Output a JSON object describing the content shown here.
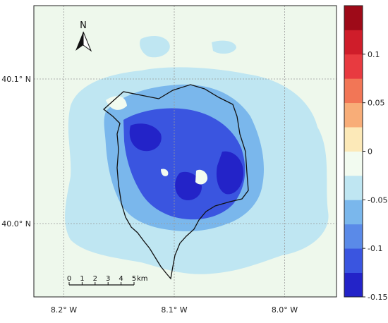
{
  "map": {
    "background_color": "#eef8ec",
    "lat_ticks": [
      {
        "value": 40.1,
        "label": "40.1° N"
      },
      {
        "value": 40.0,
        "label": "40.0° N"
      }
    ],
    "lon_ticks": [
      {
        "value": -8.2,
        "label": "8.2° W"
      },
      {
        "value": -8.1,
        "label": "8.1° W"
      },
      {
        "value": -8.0,
        "label": "8.0° W"
      }
    ],
    "north_arrow": {
      "label": "N",
      "icon": "north-arrow-icon"
    },
    "scale_bar": {
      "tick_labels": [
        "0",
        "1",
        "2",
        "3",
        "4",
        "5"
      ],
      "unit": "km"
    }
  },
  "colorbar": {
    "colors": [
      "#2323c8",
      "#3a55e0",
      "#5a8ae8",
      "#7ab7ec",
      "#bfe6f2",
      "#f2fbf0",
      "#fce9b8",
      "#f8ad78",
      "#f27656",
      "#e83a40",
      "#cf1d2a",
      "#9e0a18"
    ],
    "tick_labels": [
      {
        "value": 0.1,
        "label": "0.1"
      },
      {
        "value": 0.05,
        "label": "0.05"
      },
      {
        "value": 0,
        "label": "0"
      },
      {
        "value": -0.05,
        "label": "-0.05"
      },
      {
        "value": -0.1,
        "label": "-0.1"
      },
      {
        "value": -0.15,
        "label": "-0.15"
      }
    ]
  }
}
